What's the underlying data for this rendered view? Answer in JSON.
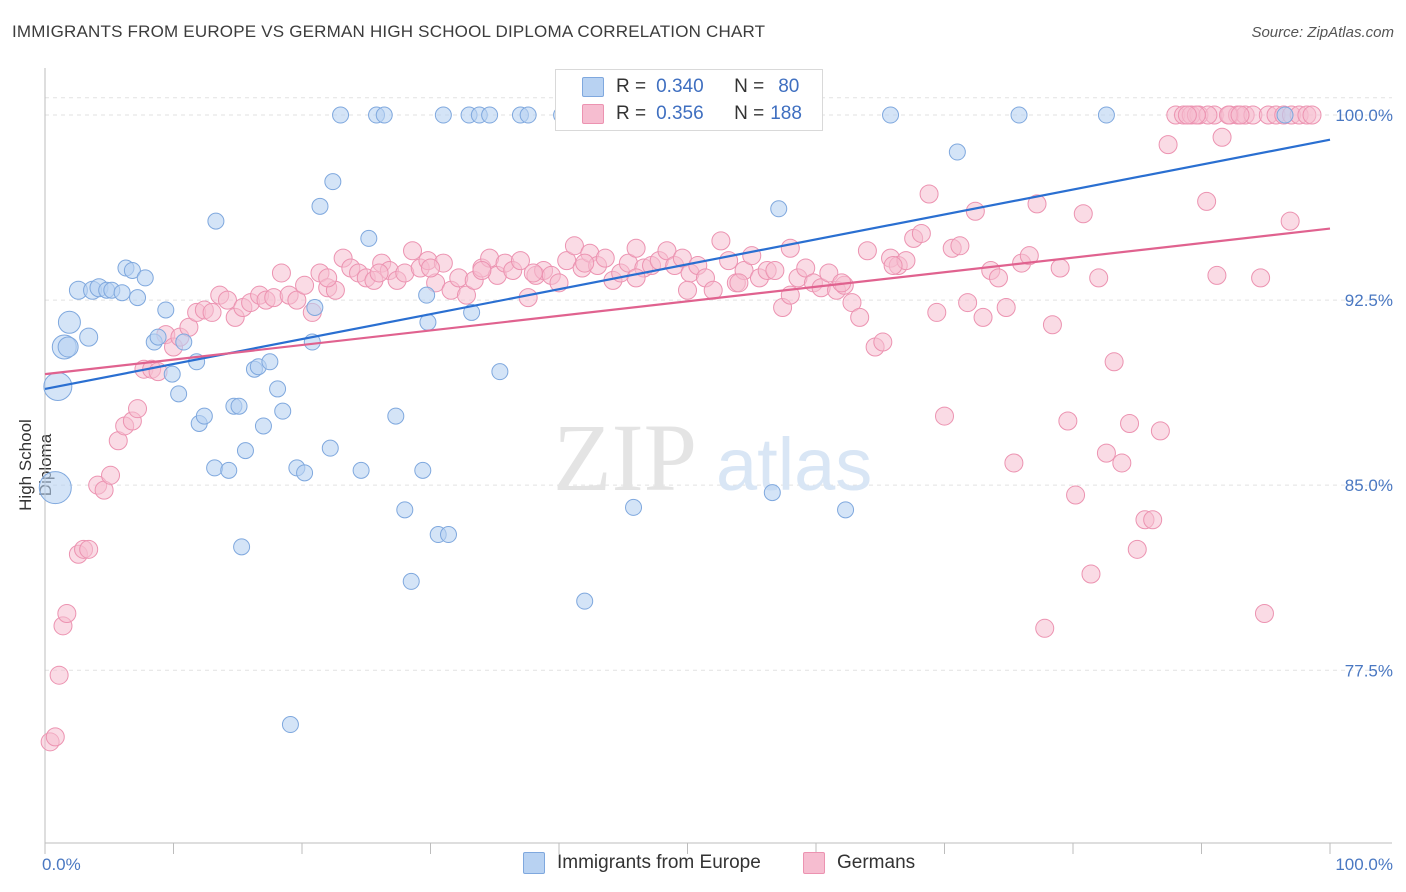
{
  "title": "IMMIGRANTS FROM EUROPE VS GERMAN HIGH SCHOOL DIPLOMA CORRELATION CHART",
  "source": "Source: ZipAtlas.com",
  "watermark": {
    "zip": "ZIP",
    "atlas": "atlas"
  },
  "colors": {
    "blue_fill": "#b8d2f2",
    "blue_stroke": "#7fa8de",
    "blue_line": "#2a6fd1",
    "pink_fill": "#f6bdd0",
    "pink_stroke": "#ec93b1",
    "pink_line": "#e0628f",
    "tick_text": "#4a78c2"
  },
  "legend_top": {
    "rows": [
      {
        "r_label": "R =",
        "r_value": "0.340",
        "n_label": "N =",
        "n_value": "80"
      },
      {
        "r_label": "R =",
        "r_value": "0.356",
        "n_label": "N =",
        "n_value": "188"
      }
    ]
  },
  "chart_data": {
    "type": "scatter",
    "title": "IMMIGRANTS FROM EUROPE VS GERMAN HIGH SCHOOL DIPLOMA CORRELATION CHART",
    "xlabel": "",
    "ylabel": "High School Diploma",
    "xlim": [
      0,
      100
    ],
    "ylim": [
      70.5,
      101.5
    ],
    "x_tick_labels": [
      "0.0%",
      "100.0%"
    ],
    "y_tick_labels": [
      "100.0%",
      "92.5%",
      "85.0%",
      "77.5%"
    ],
    "y_ticks": [
      100,
      92.5,
      85,
      77.5
    ],
    "grid": true,
    "legend_position": "bottom",
    "series": [
      {
        "name": "Immigrants from Europe",
        "color": "#b8d2f2",
        "trend": {
          "x": [
            0,
            100
          ],
          "y": [
            88.9,
            99.0
          ]
        },
        "points": [
          [
            0.8,
            84.9,
            16
          ],
          [
            1.0,
            89.0,
            14
          ],
          [
            1.5,
            90.6,
            12
          ],
          [
            1.8,
            90.6,
            10
          ],
          [
            1.9,
            91.6,
            11
          ],
          [
            2.6,
            92.9,
            9
          ],
          [
            3.4,
            91.0,
            9
          ],
          [
            3.7,
            92.9,
            9
          ],
          [
            4.2,
            93.0,
            9
          ],
          [
            4.8,
            92.9,
            8
          ],
          [
            5.2,
            92.9,
            8
          ],
          [
            6.0,
            92.8,
            8
          ],
          [
            6.3,
            93.8,
            8
          ],
          [
            6.8,
            93.7,
            8
          ],
          [
            7.2,
            92.6,
            8
          ],
          [
            7.8,
            93.4,
            8
          ],
          [
            8.5,
            90.8,
            8
          ],
          [
            8.8,
            91.0,
            8
          ],
          [
            9.4,
            92.1,
            8
          ],
          [
            9.9,
            89.5,
            8
          ],
          [
            10.4,
            88.7,
            8
          ],
          [
            10.8,
            90.8,
            8
          ],
          [
            11.8,
            90.0,
            8
          ],
          [
            12.0,
            87.5,
            8
          ],
          [
            12.4,
            87.8,
            8
          ],
          [
            13.2,
            85.7,
            8
          ],
          [
            13.3,
            95.7,
            8
          ],
          [
            14.3,
            85.6,
            8
          ],
          [
            14.7,
            88.2,
            8
          ],
          [
            15.1,
            88.2,
            8
          ],
          [
            15.3,
            82.5,
            8
          ],
          [
            15.6,
            86.4,
            8
          ],
          [
            16.3,
            89.7,
            8
          ],
          [
            16.6,
            89.8,
            8
          ],
          [
            17.0,
            87.4,
            8
          ],
          [
            17.5,
            90.0,
            8
          ],
          [
            18.1,
            88.9,
            8
          ],
          [
            18.5,
            88.0,
            8
          ],
          [
            19.1,
            75.3,
            8
          ],
          [
            19.6,
            85.7,
            8
          ],
          [
            20.2,
            85.5,
            8
          ],
          [
            20.8,
            90.8,
            8
          ],
          [
            21.0,
            92.2,
            8
          ],
          [
            21.4,
            96.3,
            8
          ],
          [
            22.2,
            86.5,
            8
          ],
          [
            22.4,
            97.3,
            8
          ],
          [
            23.0,
            100.0,
            8
          ],
          [
            24.6,
            85.6,
            8
          ],
          [
            25.2,
            95.0,
            8
          ],
          [
            25.8,
            100.0,
            8
          ],
          [
            26.4,
            100.0,
            8
          ],
          [
            27.3,
            87.8,
            8
          ],
          [
            28.0,
            84.0,
            8
          ],
          [
            28.5,
            81.1,
            8
          ],
          [
            29.4,
            85.6,
            8
          ],
          [
            29.7,
            92.7,
            8
          ],
          [
            29.8,
            91.6,
            8
          ],
          [
            30.6,
            83.0,
            8
          ],
          [
            31.0,
            100.0,
            8
          ],
          [
            31.4,
            83.0,
            8
          ],
          [
            33.0,
            100.0,
            8
          ],
          [
            33.2,
            92.0,
            8
          ],
          [
            33.8,
            100.0,
            8
          ],
          [
            34.6,
            100.0,
            8
          ],
          [
            35.4,
            89.6,
            8
          ],
          [
            37.0,
            100.0,
            8
          ],
          [
            37.6,
            100.0,
            8
          ],
          [
            40.2,
            100.0,
            8
          ],
          [
            41.6,
            100.0,
            8
          ],
          [
            42.0,
            80.3,
            8
          ],
          [
            44.5,
            100.0,
            8
          ],
          [
            45.8,
            84.1,
            8
          ],
          [
            56.6,
            84.7,
            8
          ],
          [
            57.1,
            96.2,
            8
          ],
          [
            62.3,
            84.0,
            8
          ],
          [
            65.8,
            100.0,
            8
          ],
          [
            71.0,
            98.5,
            8
          ],
          [
            75.8,
            100.0,
            8
          ],
          [
            82.6,
            100.0,
            8
          ],
          [
            96.5,
            100.0,
            8
          ]
        ]
      },
      {
        "name": "Germans",
        "color": "#f6bdd0",
        "trend": {
          "x": [
            0,
            100
          ],
          "y": [
            89.5,
            95.4
          ]
        },
        "points": [
          [
            0.4,
            74.6
          ],
          [
            0.8,
            74.8
          ],
          [
            1.1,
            77.3
          ],
          [
            1.4,
            79.3
          ],
          [
            1.7,
            79.8
          ],
          [
            2.6,
            82.2
          ],
          [
            3.0,
            82.4
          ],
          [
            3.4,
            82.4
          ],
          [
            4.1,
            85.0
          ],
          [
            4.6,
            84.8
          ],
          [
            5.1,
            85.4
          ],
          [
            5.7,
            86.8
          ],
          [
            6.2,
            87.4
          ],
          [
            6.8,
            87.6
          ],
          [
            7.2,
            88.1
          ],
          [
            7.7,
            89.7
          ],
          [
            8.3,
            89.7
          ],
          [
            8.8,
            89.6
          ],
          [
            9.4,
            91.1
          ],
          [
            10.0,
            90.6
          ],
          [
            10.5,
            91.0
          ],
          [
            11.2,
            91.4
          ],
          [
            11.8,
            92.0
          ],
          [
            12.4,
            92.1
          ],
          [
            13.0,
            92.0
          ],
          [
            13.6,
            92.7
          ],
          [
            14.2,
            92.5
          ],
          [
            14.8,
            91.8
          ],
          [
            15.4,
            92.2
          ],
          [
            16.0,
            92.4
          ],
          [
            16.7,
            92.7
          ],
          [
            17.2,
            92.5
          ],
          [
            17.8,
            92.6
          ],
          [
            18.4,
            93.6
          ],
          [
            19.0,
            92.7
          ],
          [
            19.6,
            92.5
          ],
          [
            20.2,
            93.1
          ],
          [
            20.8,
            92.0
          ],
          [
            21.4,
            93.6
          ],
          [
            22.0,
            93.0
          ],
          [
            22.6,
            92.9
          ],
          [
            23.2,
            94.2
          ],
          [
            23.8,
            93.8
          ],
          [
            24.4,
            93.6
          ],
          [
            25.0,
            93.4
          ],
          [
            25.6,
            93.3
          ],
          [
            26.2,
            94.0
          ],
          [
            26.8,
            93.7
          ],
          [
            27.4,
            93.3
          ],
          [
            28.0,
            93.6
          ],
          [
            28.6,
            94.5
          ],
          [
            29.2,
            93.8
          ],
          [
            29.8,
            94.1
          ],
          [
            30.4,
            93.2
          ],
          [
            31.0,
            94.0
          ],
          [
            31.6,
            92.9
          ],
          [
            32.2,
            93.4
          ],
          [
            32.8,
            92.7
          ],
          [
            33.4,
            93.3
          ],
          [
            34.0,
            93.8
          ],
          [
            34.6,
            94.2
          ],
          [
            35.2,
            93.5
          ],
          [
            35.8,
            94.0
          ],
          [
            36.4,
            93.7
          ],
          [
            37.0,
            94.1
          ],
          [
            37.6,
            92.6
          ],
          [
            38.2,
            93.5
          ],
          [
            38.8,
            93.7
          ],
          [
            39.4,
            93.5
          ],
          [
            40.0,
            93.2
          ],
          [
            40.6,
            94.1
          ],
          [
            41.2,
            94.7
          ],
          [
            41.8,
            93.8
          ],
          [
            42.4,
            94.4
          ],
          [
            43.0,
            93.9
          ],
          [
            43.6,
            94.2
          ],
          [
            44.2,
            93.3
          ],
          [
            44.8,
            93.6
          ],
          [
            45.4,
            94.0
          ],
          [
            46.0,
            94.6
          ],
          [
            46.6,
            93.8
          ],
          [
            47.2,
            93.9
          ],
          [
            47.8,
            94.1
          ],
          [
            48.4,
            94.5
          ],
          [
            49.0,
            93.9
          ],
          [
            49.6,
            94.2
          ],
          [
            50.2,
            93.6
          ],
          [
            50.8,
            93.9
          ],
          [
            51.4,
            93.4
          ],
          [
            52.0,
            92.9
          ],
          [
            52.6,
            94.9
          ],
          [
            53.2,
            94.1
          ],
          [
            53.8,
            93.2
          ],
          [
            54.4,
            93.7
          ],
          [
            55.0,
            94.3
          ],
          [
            55.6,
            93.4
          ],
          [
            56.2,
            93.7
          ],
          [
            56.8,
            93.7
          ],
          [
            57.4,
            92.2
          ],
          [
            58.0,
            94.6
          ],
          [
            58.6,
            93.4
          ],
          [
            59.2,
            93.8
          ],
          [
            59.8,
            93.2
          ],
          [
            60.4,
            93.0
          ],
          [
            61.0,
            93.6
          ],
          [
            61.6,
            92.9
          ],
          [
            62.2,
            93.1
          ],
          [
            62.8,
            92.4
          ],
          [
            63.4,
            91.8
          ],
          [
            64.0,
            94.5
          ],
          [
            64.6,
            90.6
          ],
          [
            65.2,
            90.8
          ],
          [
            65.8,
            94.2
          ],
          [
            66.4,
            93.9
          ],
          [
            67.0,
            94.1
          ],
          [
            67.6,
            95.0
          ],
          [
            68.2,
            95.2
          ],
          [
            68.8,
            96.8
          ],
          [
            69.4,
            92.0
          ],
          [
            70.0,
            87.8
          ],
          [
            70.6,
            94.6
          ],
          [
            71.2,
            94.7
          ],
          [
            71.8,
            92.4
          ],
          [
            72.4,
            96.1
          ],
          [
            73.0,
            91.8
          ],
          [
            73.6,
            93.7
          ],
          [
            74.2,
            93.4
          ],
          [
            74.8,
            92.2
          ],
          [
            75.4,
            85.9
          ],
          [
            76.0,
            94.0
          ],
          [
            76.6,
            94.3
          ],
          [
            77.2,
            96.4
          ],
          [
            77.8,
            79.2
          ],
          [
            78.4,
            91.5
          ],
          [
            79.0,
            93.8
          ],
          [
            79.6,
            87.6
          ],
          [
            80.2,
            84.6
          ],
          [
            80.8,
            96.0
          ],
          [
            81.4,
            81.4
          ],
          [
            82.0,
            93.4
          ],
          [
            82.6,
            86.3
          ],
          [
            83.2,
            90.0
          ],
          [
            83.8,
            85.9
          ],
          [
            84.4,
            87.5
          ],
          [
            85.0,
            82.4
          ],
          [
            85.6,
            83.6
          ],
          [
            86.2,
            83.6
          ],
          [
            86.8,
            87.2
          ],
          [
            87.4,
            98.8
          ],
          [
            88.0,
            100.0
          ],
          [
            88.6,
            100.0
          ],
          [
            89.2,
            100.0
          ],
          [
            89.8,
            100.0
          ],
          [
            90.4,
            96.5
          ],
          [
            91.0,
            100.0
          ],
          [
            91.6,
            99.1
          ],
          [
            92.2,
            100.0
          ],
          [
            92.8,
            100.0
          ],
          [
            93.4,
            100.0
          ],
          [
            94.0,
            100.0
          ],
          [
            94.6,
            93.4
          ],
          [
            95.2,
            100.0
          ],
          [
            95.8,
            100.0
          ],
          [
            96.4,
            100.0
          ],
          [
            97.0,
            100.0
          ],
          [
            97.6,
            100.0
          ],
          [
            98.2,
            100.0
          ],
          [
            98.6,
            100.0
          ],
          [
            96.9,
            95.7
          ],
          [
            94.9,
            79.8
          ],
          [
            90.5,
            100.0
          ],
          [
            89.6,
            100.0
          ],
          [
            88.9,
            100.0
          ],
          [
            91.2,
            93.5
          ],
          [
            92.1,
            100.0
          ],
          [
            93.0,
            100.0
          ],
          [
            66.0,
            93.9
          ],
          [
            62.0,
            93.2
          ],
          [
            58.0,
            92.7
          ],
          [
            54.0,
            93.2
          ],
          [
            50.0,
            92.9
          ],
          [
            46.0,
            93.4
          ],
          [
            42.0,
            94.0
          ],
          [
            38.0,
            93.6
          ],
          [
            34.0,
            93.7
          ],
          [
            30.0,
            93.8
          ],
          [
            26.0,
            93.6
          ],
          [
            22.0,
            93.4
          ]
        ]
      }
    ]
  },
  "bottom_legend": [
    {
      "label": "Immigrants from Europe"
    },
    {
      "label": "Germans"
    }
  ]
}
